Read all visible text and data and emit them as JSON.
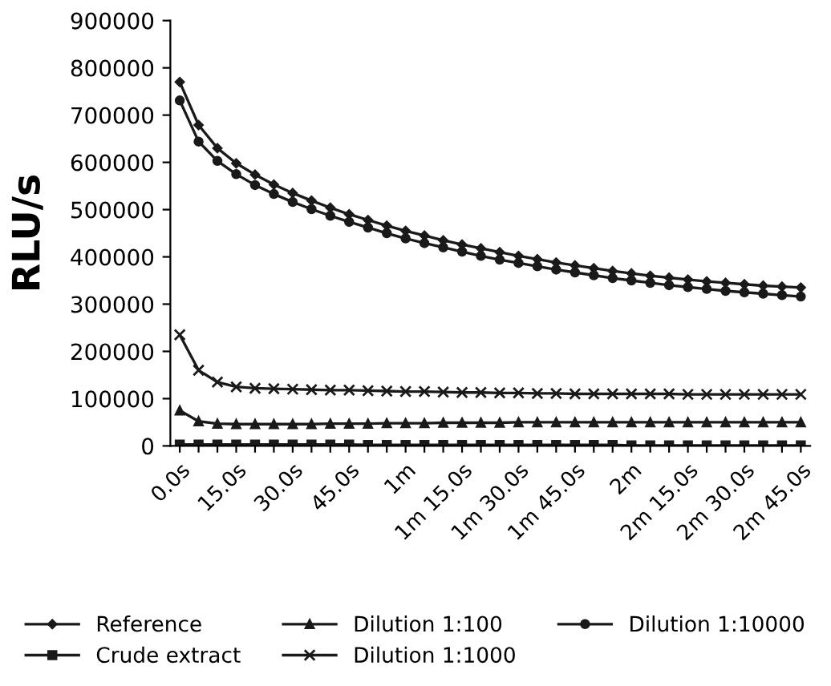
{
  "chart_data": {
    "type": "line",
    "ylabel": "RLU/s",
    "categories": [
      "0.0s",
      null,
      null,
      "15.0s",
      null,
      null,
      "30.0s",
      null,
      null,
      "45.0s",
      null,
      null,
      "1m",
      null,
      null,
      "1m 15.0s",
      null,
      null,
      "1m 30.0s",
      null,
      null,
      "1m 45.0s",
      null,
      null,
      "2m",
      null,
      null,
      "2m 15.0s",
      null,
      null,
      "2m 30.0s",
      null,
      null,
      "2m 45.0s"
    ],
    "series": [
      {
        "name": "Reference",
        "color": "#1a1a1a",
        "marker": "diamond",
        "values": [
          770000,
          679000,
          630000,
          598000,
          574000,
          553000,
          535000,
          519000,
          504000,
          490000,
          478000,
          466000,
          455000,
          445000,
          435000,
          426000,
          418000,
          410000,
          402000,
          395000,
          388000,
          382000,
          376000,
          370000,
          365000,
          360000,
          356000,
          352000,
          348000,
          345000,
          342000,
          339000,
          337000,
          335000
        ]
      },
      {
        "name": "Crude extract",
        "color": "#1a1a1a",
        "marker": "square",
        "values": [
          3000,
          3000,
          3000,
          3000,
          3000,
          3000,
          3000,
          3000,
          3000,
          3000,
          2000,
          2000,
          2000,
          2000,
          2000,
          2000,
          2000,
          2000,
          2000,
          2000,
          2000,
          2000,
          2000,
          2000,
          1000,
          1000,
          1000,
          1000,
          1000,
          1000,
          1000,
          1000,
          1000,
          1000
        ]
      },
      {
        "name": "Dilution 1:100",
        "color": "#1a1a1a",
        "marker": "triangle",
        "values": [
          75000,
          52000,
          47000,
          46000,
          46000,
          46000,
          46000,
          46000,
          47000,
          47000,
          47000,
          48000,
          48000,
          48000,
          49000,
          49000,
          49000,
          49000,
          50000,
          50000,
          50000,
          50000,
          50000,
          50000,
          50000,
          50000,
          50000,
          50000,
          50000,
          50000,
          50000,
          50000,
          50000,
          50000
        ]
      },
      {
        "name": "Dilution 1:1000",
        "color": "#1a1a1a",
        "marker": "cross",
        "values": [
          235000,
          160000,
          135000,
          125000,
          122000,
          121000,
          120000,
          119000,
          118000,
          118000,
          117000,
          116000,
          115000,
          115000,
          114000,
          113000,
          113000,
          112000,
          112000,
          111000,
          111000,
          110000,
          110000,
          110000,
          110000,
          110000,
          110000,
          109000,
          109000,
          109000,
          109000,
          109000,
          109000,
          109000
        ]
      },
      {
        "name": "Dilution 1:10000",
        "color": "#1a1a1a",
        "marker": "circle",
        "values": [
          731000,
          644000,
          603000,
          575000,
          552000,
          533000,
          516000,
          501000,
          487000,
          474000,
          462000,
          450000,
          439000,
          429000,
          420000,
          411000,
          402000,
          394000,
          387000,
          380000,
          373000,
          367000,
          361000,
          355000,
          350000,
          345000,
          340000,
          336000,
          332000,
          328000,
          325000,
          322000,
          319000,
          316000
        ]
      }
    ],
    "ylim": [
      0,
      900000
    ],
    "yticks": [
      0,
      100000,
      200000,
      300000,
      400000,
      500000,
      600000,
      700000,
      800000,
      900000
    ],
    "grid": false,
    "legend": "bottom",
    "line_style": "solid"
  }
}
